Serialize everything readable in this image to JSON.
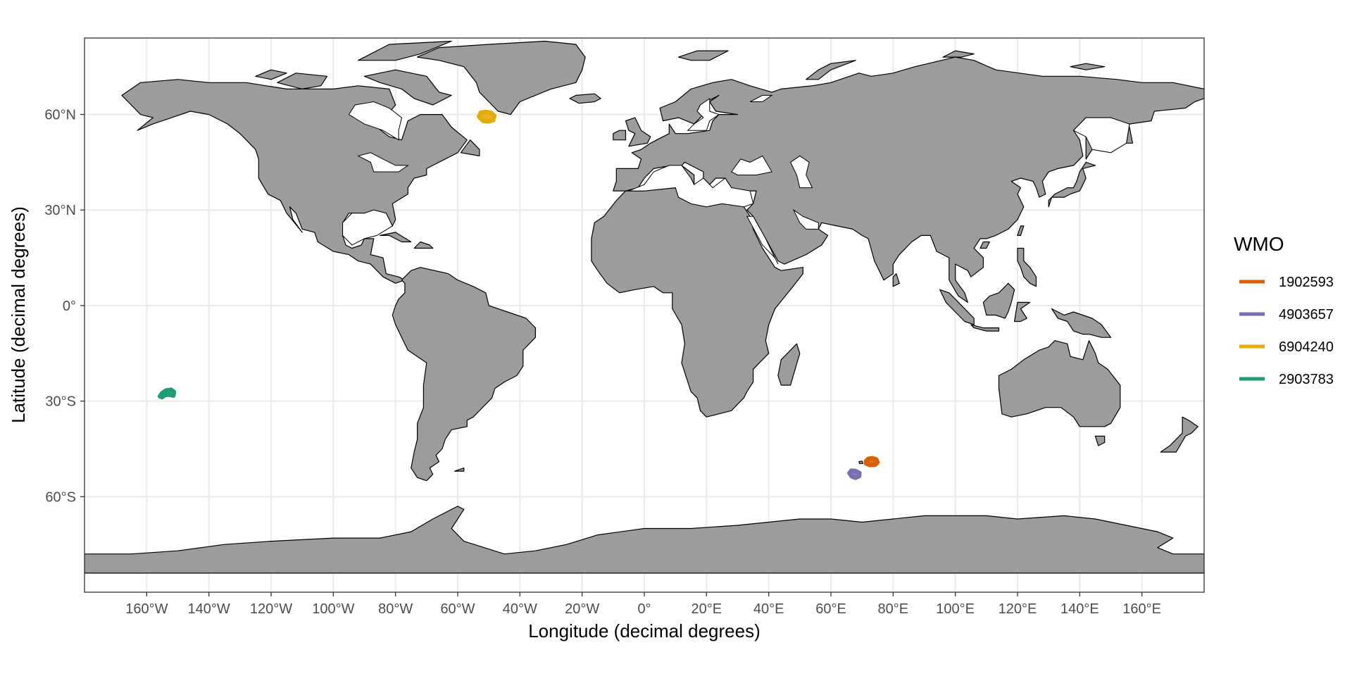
{
  "chart_data": {
    "type": "map",
    "projection": "equirectangular",
    "xlabel": "Longitude (decimal degrees)",
    "ylabel": "Latitude (decimal degrees)",
    "xlim": [
      -180,
      180
    ],
    "ylim": [
      -90,
      90
    ],
    "grid": true,
    "legend_position": "right",
    "legend_title": "WMO",
    "x_ticks": [
      {
        "value": -160,
        "label": "160°W"
      },
      {
        "value": -140,
        "label": "140°W"
      },
      {
        "value": -120,
        "label": "120°W"
      },
      {
        "value": -100,
        "label": "100°W"
      },
      {
        "value": -80,
        "label": "80°W"
      },
      {
        "value": -60,
        "label": "60°W"
      },
      {
        "value": -40,
        "label": "40°W"
      },
      {
        "value": -20,
        "label": "20°W"
      },
      {
        "value": 0,
        "label": "0°"
      },
      {
        "value": 20,
        "label": "20°E"
      },
      {
        "value": 40,
        "label": "40°E"
      },
      {
        "value": 60,
        "label": "60°E"
      },
      {
        "value": 80,
        "label": "80°E"
      },
      {
        "value": 100,
        "label": "100°E"
      },
      {
        "value": 120,
        "label": "120°E"
      },
      {
        "value": 140,
        "label": "140°E"
      },
      {
        "value": 160,
        "label": "160°E"
      }
    ],
    "y_ticks": [
      {
        "value": 60,
        "label": "60°N"
      },
      {
        "value": 30,
        "label": "30°N"
      },
      {
        "value": 0,
        "label": "0°"
      },
      {
        "value": -30,
        "label": "30°S"
      },
      {
        "value": -60,
        "label": "60°S"
      }
    ],
    "land_color": "#9c9c9c",
    "series": [
      {
        "name": "1902593",
        "color": "#d95f02",
        "points": [
          [
            71.2,
            -48.9
          ],
          [
            72.0,
            -48.1
          ],
          [
            73.4,
            -47.9
          ],
          [
            74.6,
            -48.3
          ],
          [
            75.0,
            -49.2
          ],
          [
            74.2,
            -50.0
          ],
          [
            72.5,
            -50.1
          ],
          [
            71.3,
            -49.6
          ],
          [
            71.2,
            -48.9
          ]
        ]
      },
      {
        "name": "4903657",
        "color": "#7570b3",
        "points": [
          [
            65.9,
            -52.6
          ],
          [
            66.6,
            -51.8
          ],
          [
            67.9,
            -51.9
          ],
          [
            69.2,
            -52.6
          ],
          [
            69.1,
            -53.6
          ],
          [
            67.9,
            -54.1
          ],
          [
            66.7,
            -53.7
          ],
          [
            65.9,
            -52.6
          ]
        ]
      },
      {
        "name": "6904240",
        "color": "#e6ab02",
        "points": [
          [
            -53.2,
            59.3
          ],
          [
            -52.6,
            60.6
          ],
          [
            -51.0,
            60.8
          ],
          [
            -49.4,
            60.6
          ],
          [
            -48.2,
            59.6
          ],
          [
            -48.6,
            58.2
          ],
          [
            -50.1,
            57.8
          ],
          [
            -51.9,
            58.0
          ],
          [
            -53.2,
            59.3
          ]
        ]
      },
      {
        "name": "2903783",
        "color": "#1b9e77",
        "points": [
          [
            -155.8,
            -28.5
          ],
          [
            -155.0,
            -27.4
          ],
          [
            -153.7,
            -26.6
          ],
          [
            -152.2,
            -26.4
          ],
          [
            -151.2,
            -27.1
          ],
          [
            -151.4,
            -28.3
          ],
          [
            -152.6,
            -28.0
          ],
          [
            -154.0,
            -28.1
          ],
          [
            -155.1,
            -28.8
          ],
          [
            -155.8,
            -28.5
          ]
        ]
      }
    ]
  }
}
